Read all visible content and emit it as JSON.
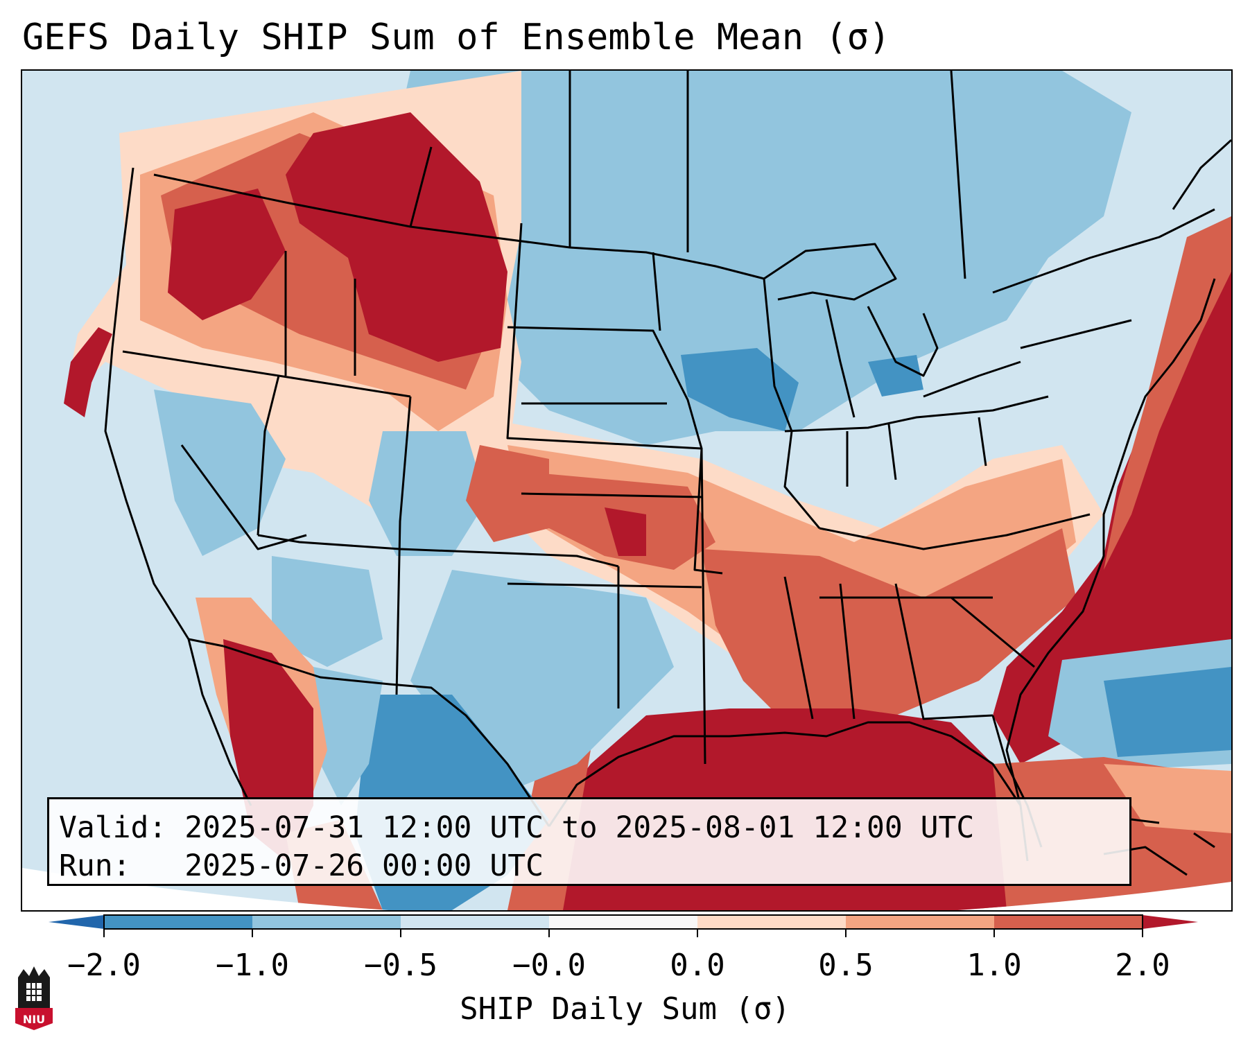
{
  "title": "GEFS Daily SHIP Sum of Ensemble Mean (σ)",
  "valid_line": "Valid: 2025-07-31 12:00 UTC to 2025-08-01 12:00 UTC",
  "run_line": "Run:   2025-07-26 00:00 UTC",
  "colorbar": {
    "label": "SHIP Daily Sum (σ)",
    "tick_labels": [
      "−2.0",
      "−1.0",
      "−0.5",
      "−0.0",
      "0.0",
      "0.5",
      "1.0",
      "2.0"
    ],
    "bins": [
      {
        "range": "-2.0 to -1.0",
        "color": "#4393c3"
      },
      {
        "range": "-1.0 to -0.5",
        "color": "#92c5de"
      },
      {
        "range": "-0.5 to -0.0",
        "color": "#d1e5f0"
      },
      {
        "range": "-0.0 to 0.0",
        "color": "#f7f7f7"
      },
      {
        "range": "0.0 to 0.5",
        "color": "#fddbc7"
      },
      {
        "range": "0.5 to 1.0",
        "color": "#f4a582"
      },
      {
        "range": "1.0 to 2.0",
        "color": "#d6604d"
      }
    ],
    "under_color": "#2166ac",
    "over_color": "#b2182b",
    "extend": "both"
  },
  "colors": {
    "strong_neg": "#4393c3",
    "neg": "#92c5de",
    "weak_neg": "#d1e5f0",
    "weak_pos": "#fddbc7",
    "pos": "#f4a582",
    "strong_pos": "#d6604d",
    "extreme_pos": "#b2182b",
    "outside_domain": "#ffffff",
    "boundary": "#000000"
  },
  "logo": {
    "text": "NIU",
    "fill": "#c8102e"
  }
}
